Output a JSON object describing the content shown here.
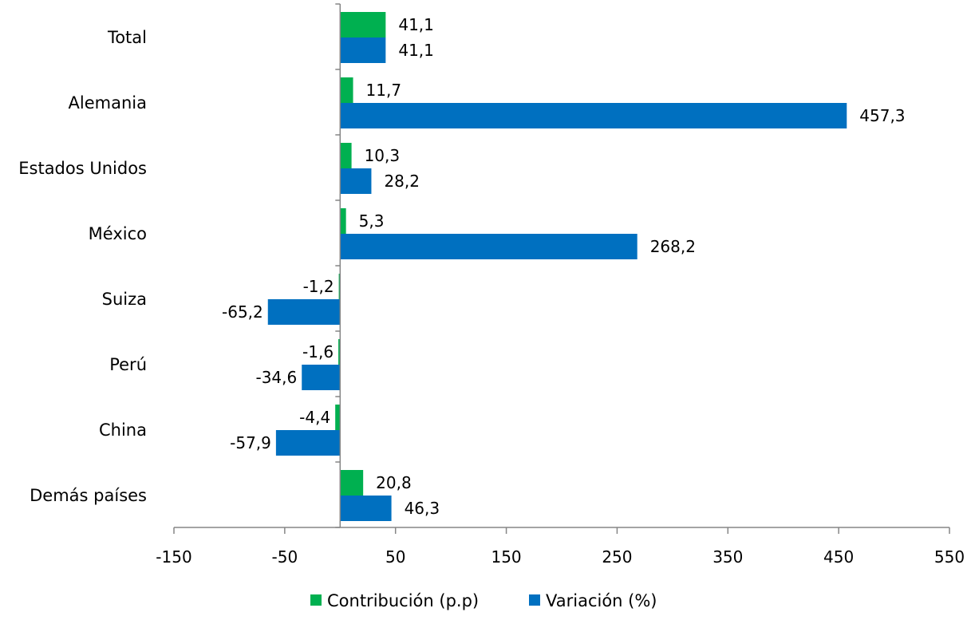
{
  "chart_data": {
    "type": "bar",
    "orientation": "horizontal",
    "categories": [
      "Total",
      "Alemania",
      "Estados Unidos",
      "México",
      "Suiza",
      "Perú",
      "China",
      "Demás países"
    ],
    "series": [
      {
        "name": "Contribución (p.p)",
        "color": "#00B050",
        "values": [
          41.1,
          11.7,
          10.3,
          5.3,
          -1.2,
          -1.6,
          -4.4,
          20.8
        ],
        "labels": [
          "41,1",
          "11,7",
          "10,3",
          "5,3",
          "-1,2",
          "-1,6",
          "-4,4",
          "20,8"
        ]
      },
      {
        "name": "Variación (%)",
        "color": "#0070C0",
        "values": [
          41.1,
          457.3,
          28.2,
          268.2,
          -65.2,
          -34.6,
          -57.9,
          46.3
        ],
        "labels": [
          "41,1",
          "457,3",
          "28,2",
          "268,2",
          "-65,2",
          "-34,6",
          "-57,9",
          "46,3"
        ]
      }
    ],
    "xlim": [
      -150,
      550
    ],
    "xticks": [
      -150,
      -50,
      50,
      150,
      250,
      350,
      450,
      550
    ],
    "xtick_labels": [
      "-150",
      "-50",
      "50",
      "150",
      "250",
      "350",
      "450",
      "550"
    ],
    "title": "",
    "xlabel": "",
    "ylabel": "",
    "grid": false,
    "legend_position": "bottom"
  }
}
